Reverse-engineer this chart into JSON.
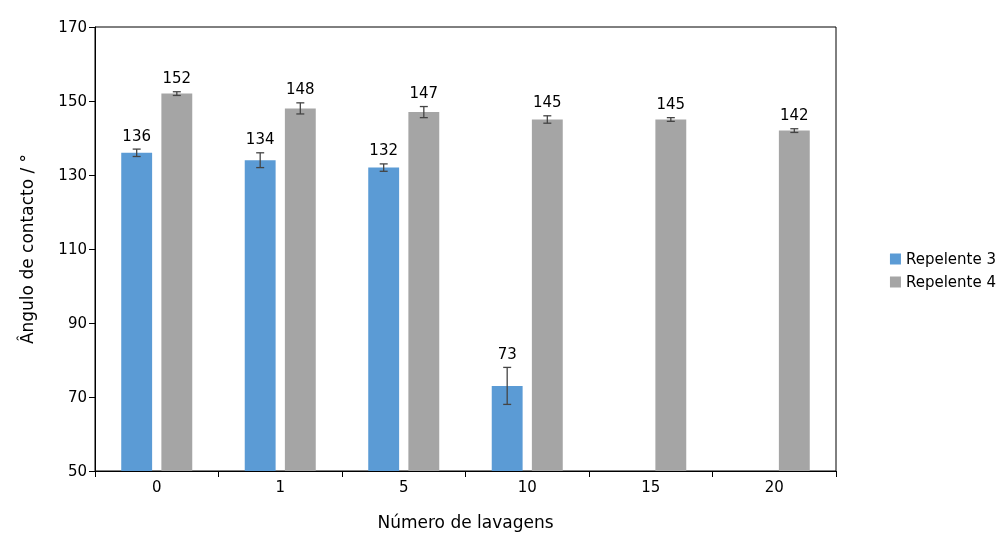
{
  "chart_data": {
    "type": "bar",
    "xlabel": "Número de lavagens",
    "ylabel": "Ângulo de contacto / °",
    "categories": [
      "0",
      "1",
      "5",
      "10",
      "15",
      "20"
    ],
    "series": [
      {
        "name": "Repelente 3",
        "color": "#5b9bd5",
        "values": [
          136,
          134,
          132,
          73,
          null,
          null
        ],
        "errors": [
          1,
          2,
          1,
          5,
          null,
          null
        ]
      },
      {
        "name": "Repelente 4",
        "color": "#a5a5a5",
        "values": [
          152,
          148,
          147,
          145,
          145,
          142
        ],
        "errors": [
          0.5,
          1.5,
          1.5,
          1,
          0.5,
          0.5
        ]
      }
    ],
    "ylim": [
      50,
      170
    ],
    "yticks": [
      50,
      70,
      90,
      110,
      130,
      150,
      170
    ],
    "grid": false,
    "legend": "right",
    "data_labels": true
  }
}
